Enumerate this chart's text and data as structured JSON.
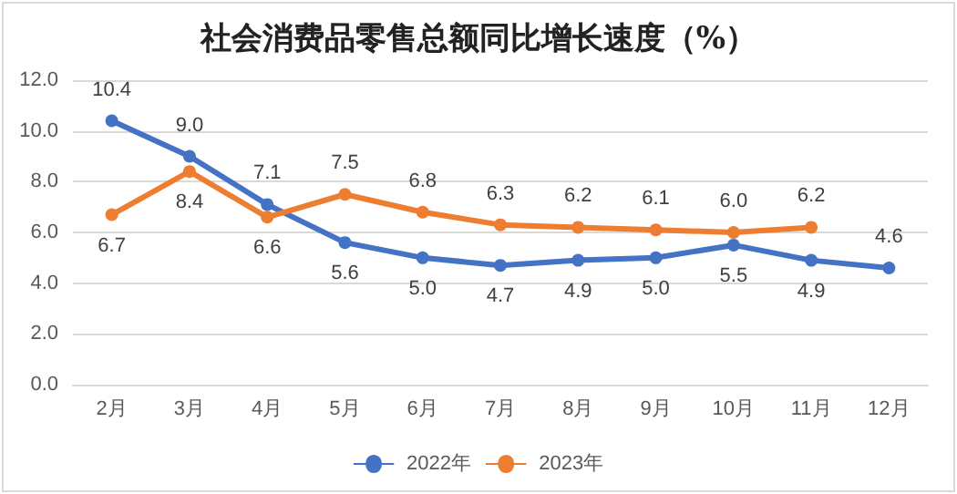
{
  "chart_data": {
    "type": "line",
    "title": "社会消费品零售总额同比增长速度（%）",
    "categories": [
      "2月",
      "3月",
      "4月",
      "5月",
      "6月",
      "7月",
      "8月",
      "9月",
      "10月",
      "11月",
      "12月"
    ],
    "series": [
      {
        "name": "2022年",
        "color": "#4472c4",
        "values": [
          10.4,
          9.0,
          7.1,
          5.6,
          5.0,
          4.7,
          4.9,
          5.0,
          5.5,
          4.9,
          4.6
        ],
        "value_labels": [
          "10.4",
          "9.0",
          "7.1",
          "5.6",
          "5.0",
          "4.7",
          "4.9",
          "5.0",
          "5.5",
          "4.9",
          "4.6"
        ]
      },
      {
        "name": "2023年",
        "color": "#ed7d31",
        "values": [
          6.7,
          8.4,
          6.6,
          7.5,
          6.8,
          6.3,
          6.2,
          6.1,
          6.0,
          6.2,
          null
        ],
        "value_labels": [
          "6.7",
          "8.4",
          "6.6",
          "7.5",
          "6.8",
          "6.3",
          "6.2",
          "6.1",
          "6.0",
          "6.2",
          null
        ]
      }
    ],
    "ylim": [
      0,
      12
    ],
    "yticks": [
      {
        "value": 0,
        "label": "0.0"
      },
      {
        "value": 2,
        "label": "2.0"
      },
      {
        "value": 4,
        "label": "4.0"
      },
      {
        "value": 6,
        "label": "6.0"
      },
      {
        "value": 8,
        "label": "8.0"
      },
      {
        "value": 10,
        "label": "10.0"
      },
      {
        "value": 12,
        "label": "12.0"
      }
    ],
    "grid": "y",
    "legend": "bottom",
    "marker": "circle",
    "line_style": "solid"
  }
}
